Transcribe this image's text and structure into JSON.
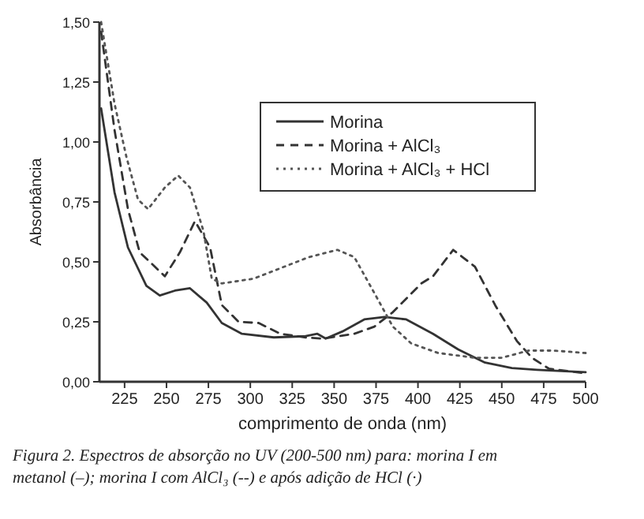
{
  "chart_data": {
    "type": "line",
    "xlabel": "comprimento de onda (nm)",
    "ylabel": "Absorbância",
    "xlim": [
      210,
      500
    ],
    "ylim": [
      0,
      1.5
    ],
    "xticks": [
      225,
      250,
      275,
      300,
      325,
      350,
      375,
      400,
      425,
      450,
      475,
      500
    ],
    "yticks": [
      {
        "value": 0,
        "label": "0,00"
      },
      {
        "value": 0.25,
        "label": "0,25"
      },
      {
        "value": 0.5,
        "label": "0,50"
      },
      {
        "value": 0.75,
        "label": "0,75"
      },
      {
        "value": 1,
        "label": "1,00"
      },
      {
        "value": 1.25,
        "label": "1,25"
      },
      {
        "value": 1.5,
        "label": "1,50"
      }
    ],
    "legend": "top right",
    "grid": false,
    "series": [
      {
        "name": "Morina",
        "color": "#333333",
        "line_style": "solid",
        "x": [
          211,
          219,
          227,
          238,
          246,
          255,
          264,
          274,
          283,
          295,
          314,
          333,
          340,
          345,
          355,
          368,
          380,
          393,
          409,
          424,
          440,
          456,
          471,
          500
        ],
        "values": [
          1.14,
          0.79,
          0.56,
          0.4,
          0.36,
          0.38,
          0.39,
          0.33,
          0.245,
          0.2,
          0.185,
          0.19,
          0.2,
          0.18,
          0.21,
          0.26,
          0.27,
          0.26,
          0.2,
          0.135,
          0.08,
          0.057,
          0.05,
          0.04
        ]
      },
      {
        "name": "Morina + AlCl₃",
        "color": "#333333",
        "line_style": "dashed",
        "x": [
          211,
          219,
          227,
          234,
          249,
          258,
          267,
          276,
          283,
          293,
          305,
          318,
          333,
          343,
          362,
          374,
          385,
          402,
          409,
          421,
          434,
          446,
          459,
          468,
          478,
          500
        ],
        "values": [
          1.46,
          1.05,
          0.72,
          0.54,
          0.44,
          0.54,
          0.67,
          0.56,
          0.32,
          0.25,
          0.245,
          0.2,
          0.185,
          0.18,
          0.2,
          0.23,
          0.29,
          0.41,
          0.44,
          0.55,
          0.48,
          0.32,
          0.17,
          0.1,
          0.055,
          0.035
        ]
      },
      {
        "name": "Morina + AlCl₃ + HCl",
        "color": "#555555",
        "line_style": "dotted",
        "x": [
          211,
          219,
          226,
          233,
          239,
          249,
          257,
          264,
          272,
          277,
          283,
          302,
          324,
          335,
          352,
          362,
          374,
          385,
          396,
          412,
          434,
          450,
          466,
          481,
          500
        ],
        "values": [
          1.5,
          1.16,
          0.94,
          0.76,
          0.72,
          0.81,
          0.86,
          0.81,
          0.63,
          0.43,
          0.41,
          0.43,
          0.49,
          0.52,
          0.55,
          0.52,
          0.37,
          0.23,
          0.16,
          0.12,
          0.1,
          0.1,
          0.13,
          0.13,
          0.12
        ]
      }
    ],
    "annotations": [
      "Figura 2. Espectros de absorção no UV (200-500 nm) para: morina I em metanol (–); morina I com AlCl₃ (--) e após adição de HCl (·)"
    ]
  }
}
